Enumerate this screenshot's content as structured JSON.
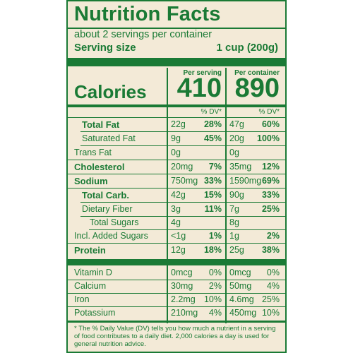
{
  "title": "Nutrition Facts",
  "servings_per_container": "about 2 servings per container",
  "serving_size_label": "Serving size",
  "serving_size_value": "1 cup (200g)",
  "col_per_serving": "Per serving",
  "col_per_container": "Per container",
  "calories_label": "Calories",
  "calories_serving": "410",
  "calories_container": "890",
  "dv_header": "% DV*",
  "nutrients": [
    {
      "name": "Total Fat",
      "bold": true,
      "indent": 0,
      "s_amt": "22g",
      "s_dv": "28%",
      "c_amt": "47g",
      "c_dv": "60%"
    },
    {
      "name": "Saturated Fat",
      "bold": false,
      "indent": 1,
      "s_amt": "9g",
      "s_dv": "45%",
      "c_amt": "20g",
      "c_dv": "100%"
    },
    {
      "name": "Trans Fat",
      "bold": false,
      "indent": 1,
      "s_amt": "0g",
      "s_dv": "",
      "c_amt": "0g",
      "c_dv": ""
    },
    {
      "name": "Cholesterol",
      "bold": true,
      "indent": 0,
      "s_amt": "20mg",
      "s_dv": "7%",
      "c_amt": "35mg",
      "c_dv": "12%"
    },
    {
      "name": "Sodium",
      "bold": true,
      "indent": 0,
      "s_amt": "750mg",
      "s_dv": "33%",
      "c_amt": "1590mg",
      "c_dv": "69%"
    },
    {
      "name": "Total Carb.",
      "bold": true,
      "indent": 0,
      "s_amt": "42g",
      "s_dv": "15%",
      "c_amt": "90g",
      "c_dv": "33%"
    },
    {
      "name": "Dietary Fiber",
      "bold": false,
      "indent": 1,
      "s_amt": "3g",
      "s_dv": "11%",
      "c_amt": "7g",
      "c_dv": "25%"
    },
    {
      "name": "Total Sugars",
      "bold": false,
      "indent": 1,
      "s_amt": "4g",
      "s_dv": "",
      "c_amt": "8g",
      "c_dv": ""
    },
    {
      "name": "Incl. Added Sugars",
      "bold": false,
      "indent": 2,
      "s_amt": "<1g",
      "s_dv": "1%",
      "c_amt": "1g",
      "c_dv": "2%"
    },
    {
      "name": "Protein",
      "bold": true,
      "indent": 0,
      "s_amt": "12g",
      "s_dv": "18%",
      "c_amt": "25g",
      "c_dv": "38%"
    }
  ],
  "vitamins": [
    {
      "name": "Vitamin D",
      "s_amt": "0mcg",
      "s_dv": "0%",
      "c_amt": "0mcg",
      "c_dv": "0%"
    },
    {
      "name": "Calcium",
      "s_amt": "30mg",
      "s_dv": "2%",
      "c_amt": "50mg",
      "c_dv": "4%"
    },
    {
      "name": "Iron",
      "s_amt": "2.2mg",
      "s_dv": "10%",
      "c_amt": "4.6mg",
      "c_dv": "25%"
    },
    {
      "name": "Potassium",
      "s_amt": "210mg",
      "s_dv": "4%",
      "c_amt": "450mg",
      "c_dv": "10%"
    }
  ],
  "footnote": "* The % Daily Value (DV) tells you how much a nutrient in a serving of food contributes to a daily diet. 2,000 calories a day is used for general nutrition advice.",
  "colors": {
    "ink": "#1a7a35",
    "background": "#f3ead7"
  }
}
